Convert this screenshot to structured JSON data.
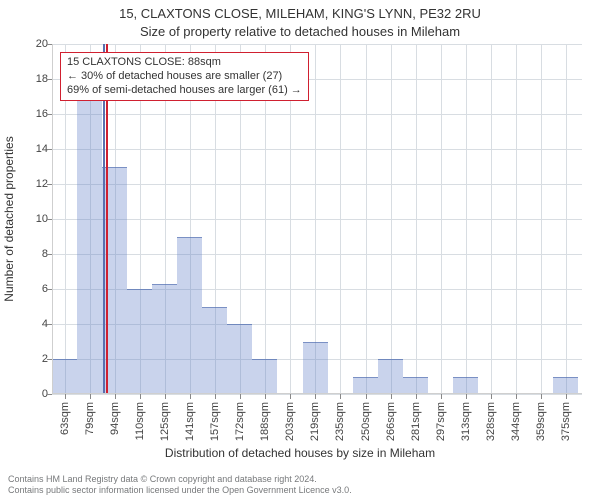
{
  "title_line1": "15, CLAXTONS CLOSE, MILEHAM, KING'S LYNN, PE32 2RU",
  "title_line2": "Size of property relative to detached houses in Mileham",
  "xlabel": "Distribution of detached houses by size in Mileham",
  "ylabel": "Number of detached properties",
  "chart": {
    "type": "histogram",
    "ylim": [
      0,
      20
    ],
    "ytick_step": 2,
    "background_color": "#ffffff",
    "grid_color": "#d8dde2",
    "bar_fill": "rgba(100,130,200,0.35)",
    "bar_edge": "rgba(70,100,170,0.6)",
    "x_min": 55,
    "x_max": 385,
    "x_tick_start": 63,
    "x_tick_step_sqm": 15.6,
    "x_tick_count": 21,
    "x_tick_suffix": "sqm",
    "bin_width_sqm": 15.6,
    "bins_start_sqm": 55,
    "values": [
      2,
      18,
      13,
      6,
      6.3,
      9,
      5,
      4,
      2,
      0,
      3,
      0,
      1,
      2,
      1,
      0,
      1,
      0,
      0,
      0,
      1
    ],
    "marker_sqm": 88,
    "marker_color": "#d02030",
    "marker_secondary_color": "#5a6fae"
  },
  "legend": {
    "line1": "15 CLAXTONS CLOSE: 88sqm",
    "line2": "← 30% of detached houses are smaller (27)",
    "line3": "69% of semi-detached houses are larger (61) →",
    "border_color": "#d02030"
  },
  "attribution": {
    "line1": "Contains HM Land Registry data © Crown copyright and database right 2024.",
    "line2": "Contains public sector information licensed under the Open Government Licence v3.0."
  },
  "fonts": {
    "title_size_pt": 10,
    "axis_label_size_pt": 9,
    "tick_size_pt": 8,
    "legend_size_pt": 8,
    "attribution_size_pt": 7
  }
}
